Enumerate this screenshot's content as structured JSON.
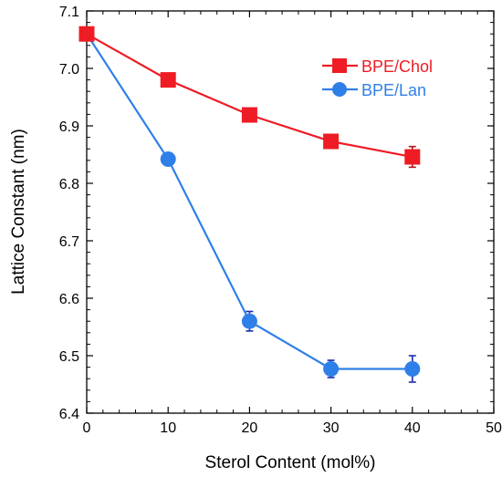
{
  "chart_data": {
    "type": "line",
    "xlabel": "Sterol Content  (mol%)",
    "ylabel": "Lattice Constant (nm)",
    "xlim": [
      0,
      50
    ],
    "ylim": [
      6.4,
      7.1
    ],
    "x_ticks": [
      "0",
      "10",
      "20",
      "30",
      "40",
      "50"
    ],
    "y_ticks": [
      "6.4",
      "6.5",
      "6.6",
      "6.7",
      "6.8",
      "6.9",
      "7.0",
      "7.1"
    ],
    "grid": false,
    "legend_position": "top-right",
    "series": [
      {
        "name": "BPE/Chol",
        "color": "#ee1c25",
        "marker": "square",
        "x": [
          0,
          10,
          20,
          30,
          40
        ],
        "y": [
          7.06,
          6.98,
          6.919,
          6.873,
          6.846
        ],
        "error": [
          0,
          0,
          0,
          0,
          0.018
        ]
      },
      {
        "name": "BPE/Lan",
        "color": "#2f7fe8",
        "marker": "circle",
        "x": [
          0,
          10,
          20,
          30,
          40
        ],
        "y": [
          7.06,
          6.842,
          6.56,
          6.477,
          6.477
        ],
        "error": [
          0,
          0,
          0.017,
          0.015,
          0.023
        ]
      }
    ]
  }
}
